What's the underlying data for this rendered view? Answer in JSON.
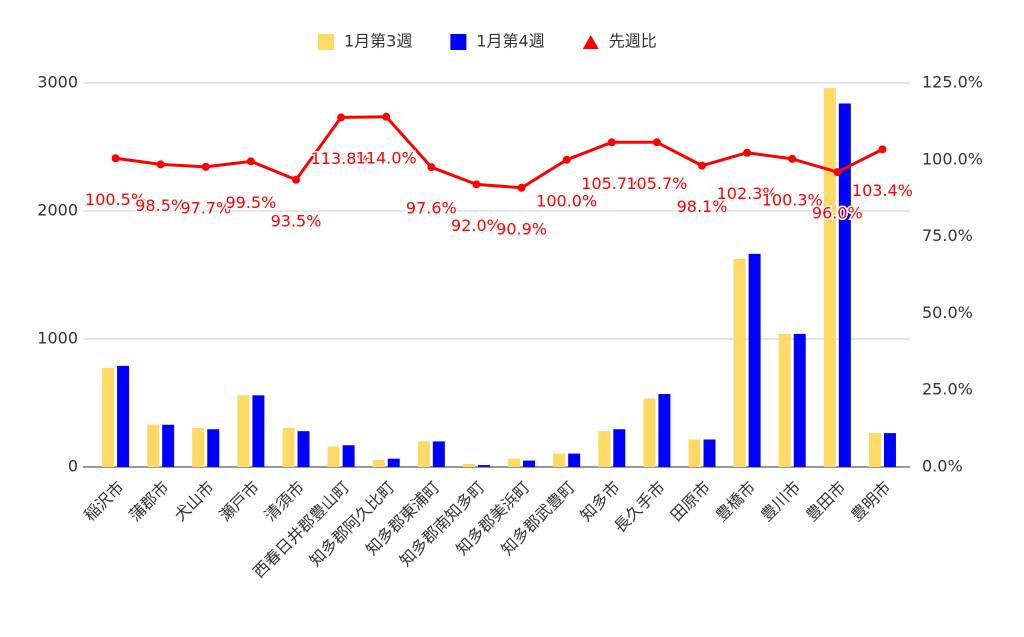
{
  "chart_data": {
    "type": "bar-line",
    "categories": [
      "稲沢市",
      "蒲郡市",
      "犬山市",
      "瀬戸市",
      "清須市",
      "西春日井郡豊山町",
      "知多郡阿久比町",
      "知多郡東浦町",
      "知多郡南知多町",
      "知多郡美浜町",
      "知多郡武豊町",
      "知多市",
      "長久手市",
      "田原市",
      "豊橋市",
      "豊川市",
      "豊田市",
      "豊明市"
    ],
    "series": [
      {
        "name": "1月第3週",
        "type": "bar",
        "color": "#ffd966",
        "values": [
          775,
          330,
          305,
          560,
          305,
          160,
          55,
          200,
          25,
          65,
          105,
          280,
          535,
          215,
          1625,
          1040,
          2960,
          265
        ]
      },
      {
        "name": "1月第4週",
        "type": "bar",
        "color": "#0000ff",
        "values": [
          790,
          330,
          295,
          560,
          280,
          170,
          65,
          200,
          15,
          50,
          105,
          295,
          570,
          215,
          1665,
          1040,
          2840,
          265
        ]
      },
      {
        "name": "先週比",
        "type": "line",
        "axis": "y2",
        "color": "#ff0000",
        "values": [
          100.5,
          98.5,
          97.7,
          99.5,
          93.5,
          113.8,
          114.0,
          97.6,
          92.0,
          90.9,
          100.0,
          105.7,
          105.7,
          98.1,
          102.3,
          100.3,
          96.0,
          103.4
        ],
        "value_labels": [
          "100.5%",
          "98.5%",
          "97.7%",
          "99.5%",
          "93.5%",
          "113.8%",
          "114.0%",
          "97.6%",
          "92.0%",
          "90.9%",
          "100.0%",
          "105.7%",
          "105.7%",
          "98.1%",
          "102.3%",
          "100.3%",
          "96.0%",
          "103.4%"
        ]
      }
    ],
    "ylim": [
      0,
      3000
    ],
    "yticks": [
      0,
      1000,
      2000,
      3000
    ],
    "y2lim": [
      0,
      125
    ],
    "y2ticks": [
      {
        "value": 0,
        "label": "0.0%"
      },
      {
        "value": 25,
        "label": "25.0%"
      },
      {
        "value": 50,
        "label": "50.0%"
      },
      {
        "value": 75,
        "label": "75.0%"
      },
      {
        "value": 100,
        "label": "100.0%"
      },
      {
        "value": 125,
        "label": "125.0%"
      }
    ],
    "grid": true,
    "legend": "top"
  }
}
